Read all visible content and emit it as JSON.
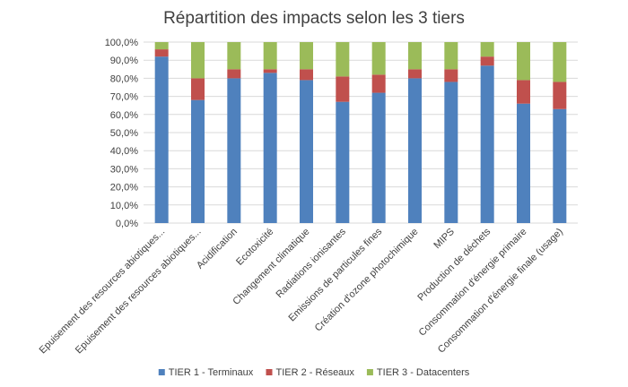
{
  "chart_data": {
    "type": "bar",
    "stacked": true,
    "title": "Répartition des impacts selon les 3 tiers",
    "xlabel": "",
    "ylabel": "",
    "ylim": [
      0,
      100
    ],
    "y_tick_labels": [
      "0,0%",
      "10,0%",
      "20,0%",
      "30,0%",
      "40,0%",
      "50,0%",
      "60,0%",
      "70,0%",
      "80,0%",
      "90,0%",
      "100,0%"
    ],
    "grid": true,
    "legend_position": "bottom",
    "categories": [
      "Epuisement des resources abiotiques...",
      "Epuisement des resources abiotiques...",
      "Acidification",
      "Ecotoxicité",
      "Changement climatique",
      "Radiations ionisantes",
      "Emissions de particules fines",
      "Création d'ozone photochimique",
      "MIPS",
      "Production de déchets",
      "Consommation d'énergie primaire",
      "Consommation d'énergie finale (usage)"
    ],
    "series": [
      {
        "name": "TIER 1 - Terminaux",
        "color": "#4f81bd",
        "values": [
          92,
          68,
          80,
          83,
          79,
          67,
          72,
          80,
          78,
          87,
          66,
          63
        ]
      },
      {
        "name": "TIER 2 - Réseaux",
        "color": "#c0504d",
        "values": [
          4,
          12,
          5,
          2,
          6,
          14,
          10,
          5,
          7,
          5,
          13,
          15
        ]
      },
      {
        "name": "TIER 3 - Datacenters",
        "color": "#9bbb59",
        "values": [
          4,
          20,
          15,
          15,
          15,
          19,
          18,
          15,
          15,
          8,
          21,
          22
        ]
      }
    ]
  }
}
